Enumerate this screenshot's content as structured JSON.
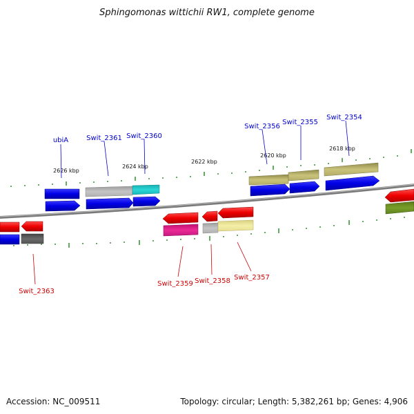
{
  "title": "Sphingomonas wittichii RW1, complete genome",
  "footer": {
    "accession": "Accession: NC_009511",
    "summary": "Topology: circular; Length: 5,382,261 bp; Genes: 4,906"
  },
  "colors": {
    "forward_label": "#0000cc",
    "reverse_label": "#cc0000",
    "backbone": "#808080",
    "tick": "#2f8f2f"
  },
  "scale_labels": [
    "2626 kbp",
    "2624 kbp",
    "2622 kbp",
    "2620 kbp",
    "2618 kbp"
  ],
  "forward_genes": [
    "ubiA",
    "Swit_2361",
    "Swit_2360",
    "Swit_2356",
    "Swit_2355",
    "Swit_2354"
  ],
  "reverse_genes": [
    "Swit_2363",
    "Swit_2359",
    "Swit_2358",
    "Swit_2357"
  ]
}
